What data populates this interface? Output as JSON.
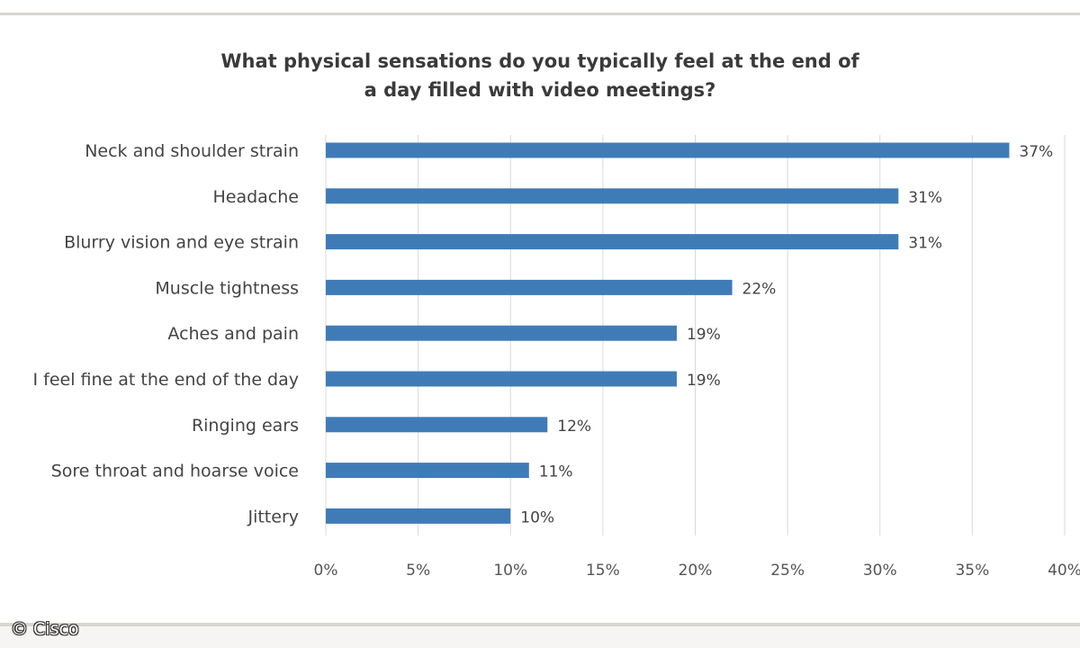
{
  "chart_data": {
    "type": "bar",
    "orientation": "horizontal",
    "title_lines": [
      "What physical sensations do you typically feel at the end of",
      "a day filled with video meetings?"
    ],
    "categories": [
      "Neck and shoulder strain",
      "Headache",
      "Blurry vision and eye strain",
      "Muscle tightness",
      "Aches and pain",
      "I feel fine at the end of the day",
      "Ringing ears",
      "Sore throat and hoarse voice",
      "Jittery"
    ],
    "values": [
      37,
      31,
      31,
      22,
      19,
      19,
      12,
      11,
      10
    ],
    "value_labels": [
      "37%",
      "31%",
      "31%",
      "22%",
      "19%",
      "19%",
      "12%",
      "11%",
      "10%"
    ],
    "x_ticks": [
      0,
      5,
      10,
      15,
      20,
      25,
      30,
      35,
      40
    ],
    "x_tick_labels": [
      "0%",
      "5%",
      "10%",
      "15%",
      "20%",
      "25%",
      "30%",
      "35%",
      "40%"
    ],
    "xlim": [
      0,
      40
    ],
    "grid": "vertical",
    "legend": "none",
    "bar_color": "#3f7cb7",
    "grid_color": "#d9d9d9"
  },
  "credit": "© Cisco"
}
